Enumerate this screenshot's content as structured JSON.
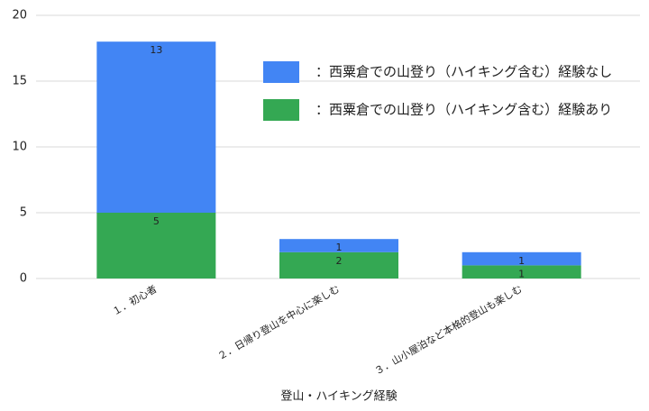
{
  "chart_data": {
    "type": "stacked_bar",
    "x_label": "登山・ハイキング経験",
    "categories": [
      "１．初心者",
      "２．日帰り登山を中心に楽しむ",
      "３．山小屋泊など本格的登山も楽しむ"
    ],
    "series": [
      {
        "name": "：西粟倉での山登り（ハイキング含む）経験あり",
        "color": "#34a853",
        "values": [
          5,
          2,
          1
        ]
      },
      {
        "name": "：西粟倉での山登り（ハイキング含む）経験なし",
        "color": "#4285f4",
        "values": [
          13,
          1,
          1
        ]
      }
    ],
    "ylim": [
      0,
      20
    ],
    "yticks": [
      0,
      5,
      10,
      15,
      20
    ],
    "grid": true
  }
}
